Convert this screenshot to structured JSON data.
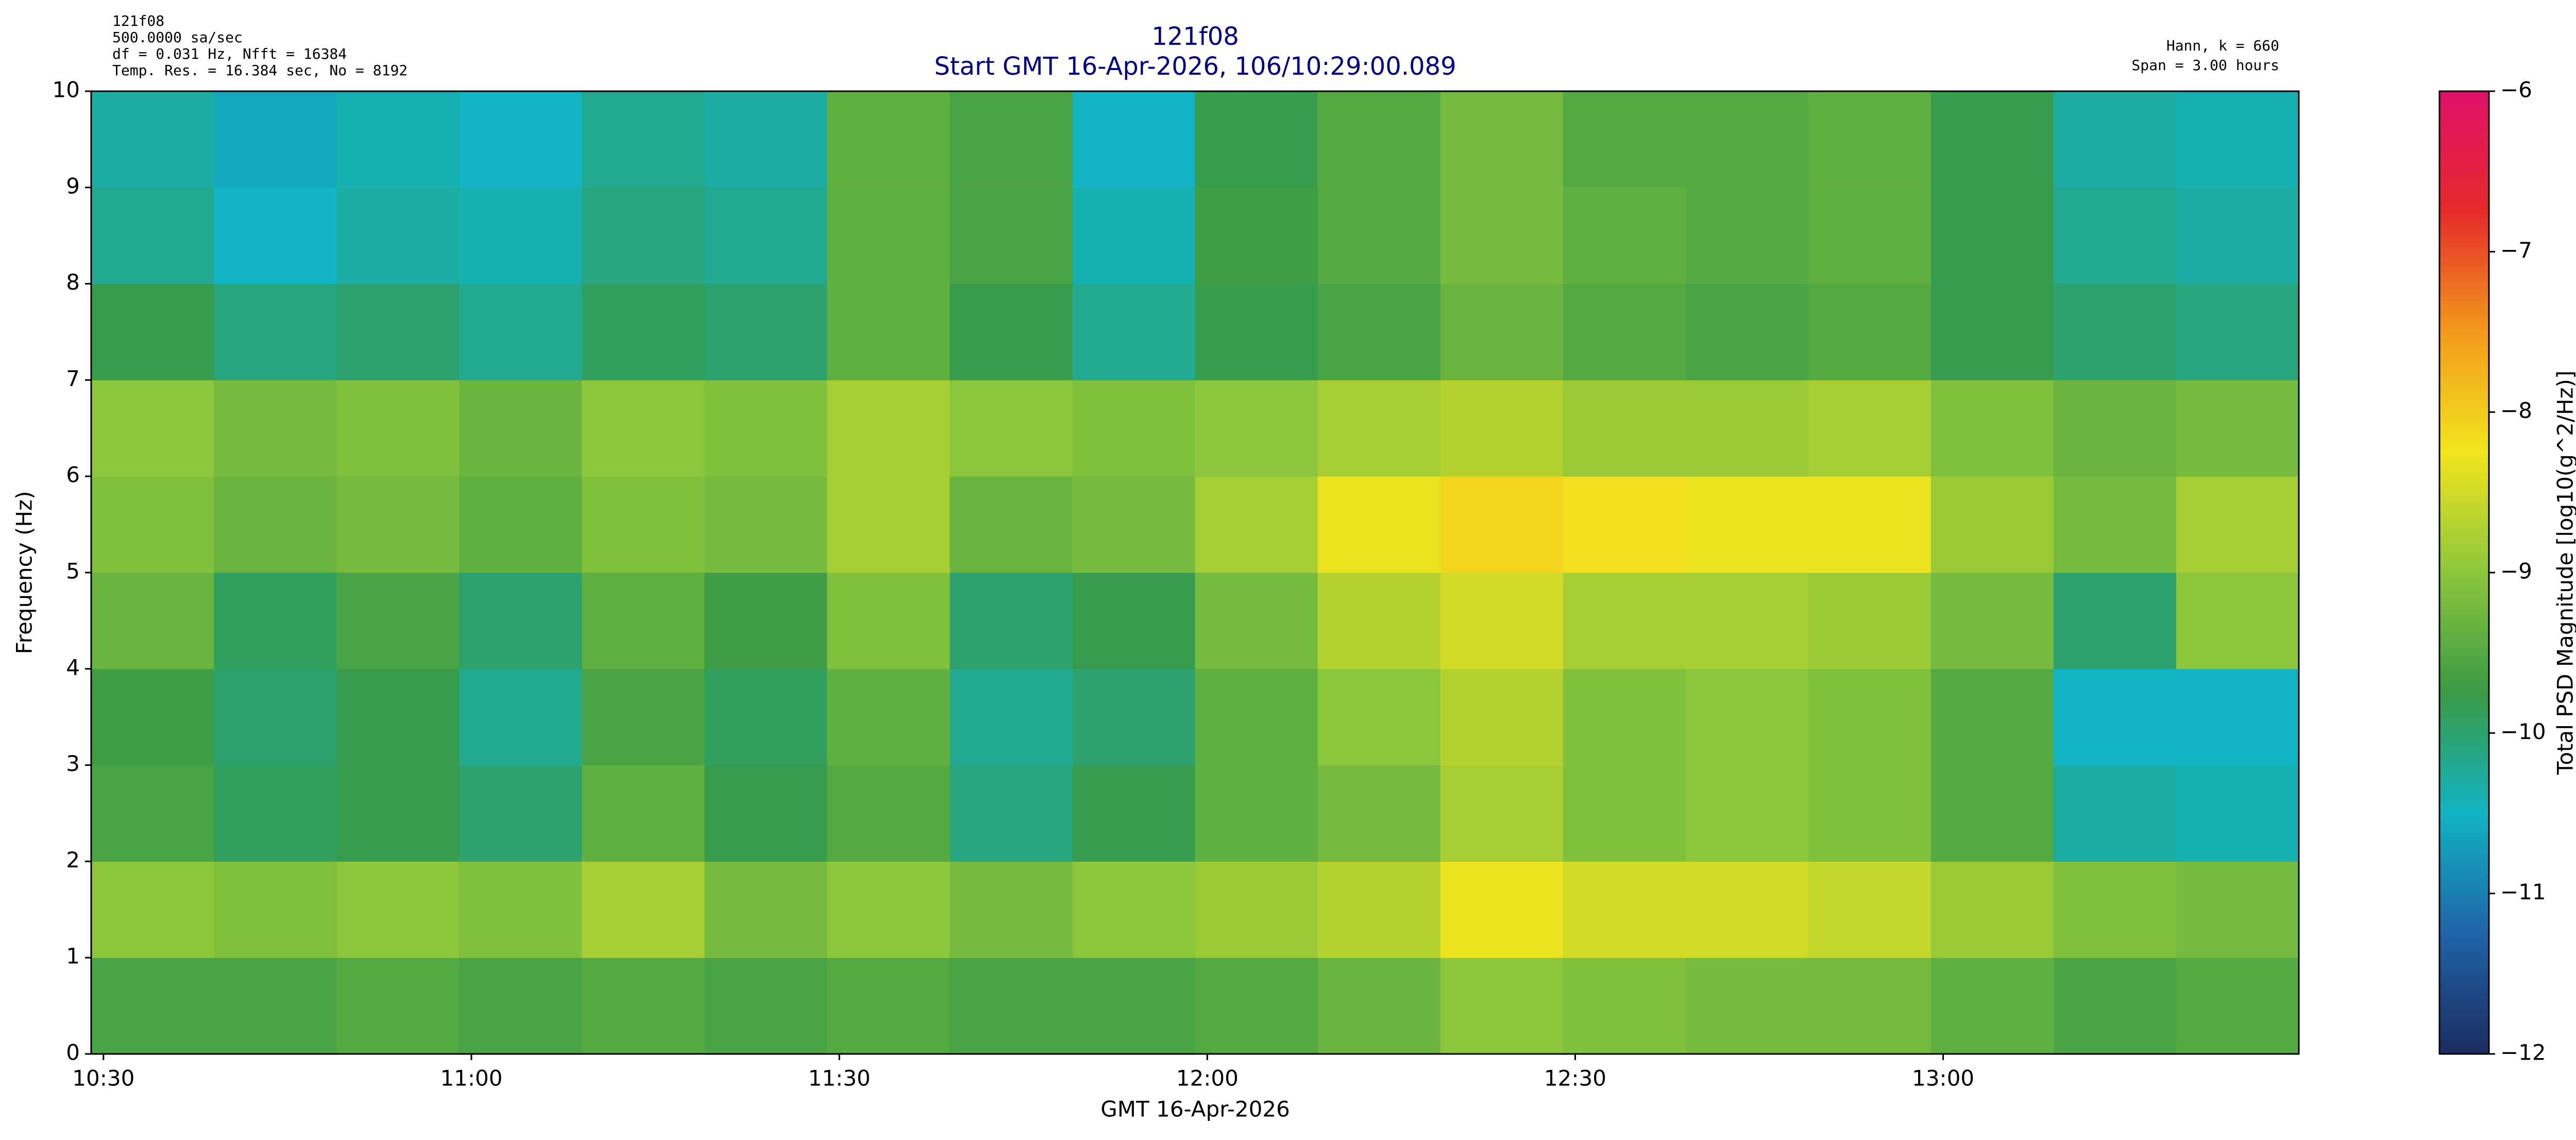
{
  "chart_data": {
    "type": "heatmap",
    "title": "121f08",
    "subtitle": "Start GMT 16-Apr-2026, 106/10:29:00.089",
    "info_left": [
      "121f08",
      "500.0000 sa/sec",
      "df = 0.031 Hz,  Nfft = 16384",
      "Temp. Res. = 16.384 sec, No = 8192"
    ],
    "info_right": [
      "Hann, k = 660",
      "Span = 3.00 hours"
    ],
    "xlabel": "GMT 16-Apr-2026",
    "ylabel": "Frequency (Hz)",
    "colorbar_label": "Total PSD Magnitude [log10(g^2/Hz)]",
    "x": [
      629,
      639,
      649,
      659,
      669,
      679,
      689,
      699,
      709,
      719,
      729,
      739,
      749,
      759,
      769,
      779,
      789,
      799,
      809
    ],
    "y": [
      0,
      1,
      2,
      3,
      4,
      5,
      6,
      7,
      8,
      9,
      10
    ],
    "values": [
      [
        -9.6,
        -9.6,
        -9.5,
        -9.6,
        -9.5,
        -9.6,
        -9.5,
        -9.6,
        -9.6,
        -9.5,
        -9.3,
        -9.0,
        -9.1,
        -9.2,
        -9.2,
        -9.4,
        -9.6,
        -9.5
      ],
      [
        -9.0,
        -9.1,
        -9.0,
        -9.1,
        -8.8,
        -9.2,
        -9.0,
        -9.2,
        -9.0,
        -8.9,
        -8.7,
        -8.3,
        -8.5,
        -8.5,
        -8.6,
        -8.9,
        -9.1,
        -9.2
      ],
      [
        -9.6,
        -9.9,
        -9.8,
        -10.0,
        -9.4,
        -9.8,
        -9.5,
        -10.1,
        -9.8,
        -9.4,
        -9.2,
        -8.8,
        -9.1,
        -9.0,
        -9.1,
        -9.5,
        -10.3,
        -10.4
      ],
      [
        -9.7,
        -10.0,
        -9.8,
        -10.2,
        -9.6,
        -9.9,
        -9.4,
        -10.2,
        -10.0,
        -9.4,
        -9.0,
        -8.7,
        -9.1,
        -9.0,
        -9.1,
        -9.5,
        -10.5,
        -10.5
      ],
      [
        -9.3,
        -9.9,
        -9.6,
        -10.0,
        -9.4,
        -9.7,
        -9.1,
        -10.0,
        -9.8,
        -9.2,
        -8.7,
        -8.5,
        -8.8,
        -8.8,
        -8.9,
        -9.2,
        -10.0,
        -9.0
      ],
      [
        -9.1,
        -9.3,
        -9.2,
        -9.4,
        -9.1,
        -9.2,
        -8.8,
        -9.3,
        -9.2,
        -8.8,
        -8.3,
        -8.1,
        -8.2,
        -8.3,
        -8.3,
        -8.9,
        -9.2,
        -8.8
      ],
      [
        -9.0,
        -9.2,
        -9.1,
        -9.3,
        -9.0,
        -9.1,
        -8.8,
        -9.0,
        -9.1,
        -9.0,
        -8.8,
        -8.7,
        -8.9,
        -8.9,
        -8.8,
        -9.1,
        -9.3,
        -9.2
      ],
      [
        -9.8,
        -10.1,
        -10.0,
        -10.2,
        -9.9,
        -10.0,
        -9.4,
        -9.8,
        -10.2,
        -9.8,
        -9.6,
        -9.3,
        -9.5,
        -9.6,
        -9.5,
        -9.8,
        -10.0,
        -10.1
      ],
      [
        -10.2,
        -10.5,
        -10.3,
        -10.4,
        -10.1,
        -10.2,
        -9.4,
        -9.6,
        -10.4,
        -9.7,
        -9.5,
        -9.2,
        -9.4,
        -9.5,
        -9.4,
        -9.8,
        -10.2,
        -10.3
      ],
      [
        -10.3,
        -10.6,
        -10.4,
        -10.5,
        -10.2,
        -10.3,
        -9.4,
        -9.6,
        -10.5,
        -9.8,
        -9.5,
        -9.2,
        -9.5,
        -9.5,
        -9.4,
        -9.8,
        -10.3,
        -10.4
      ]
    ],
    "xlim": [
      629,
      809
    ],
    "xticks": [
      {
        "value": 630,
        "label": "10:30"
      },
      {
        "value": 660,
        "label": "11:00"
      },
      {
        "value": 690,
        "label": "11:30"
      },
      {
        "value": 720,
        "label": "12:00"
      },
      {
        "value": 750,
        "label": "12:30"
      },
      {
        "value": 780,
        "label": "13:00"
      }
    ],
    "ylim": [
      0,
      10
    ],
    "yticks": [
      0,
      1,
      2,
      3,
      4,
      5,
      6,
      7,
      8,
      9,
      10
    ],
    "clim": [
      -12,
      -6
    ],
    "cticks": [
      {
        "value": -12,
        "label": "−12"
      },
      {
        "value": -11,
        "label": "−11"
      },
      {
        "value": -10,
        "label": "−10"
      },
      {
        "value": -9,
        "label": "−9"
      },
      {
        "value": -8,
        "label": "−8"
      },
      {
        "value": -7,
        "label": "−7"
      },
      {
        "value": -6,
        "label": "−6"
      }
    ],
    "colormap": [
      "#1a2c5e",
      "#1f63a8",
      "#12b3c2",
      "#3a9a46",
      "#8cc63c",
      "#f2e51e",
      "#f39a1c",
      "#e52a2a",
      "#e0106a"
    ]
  }
}
